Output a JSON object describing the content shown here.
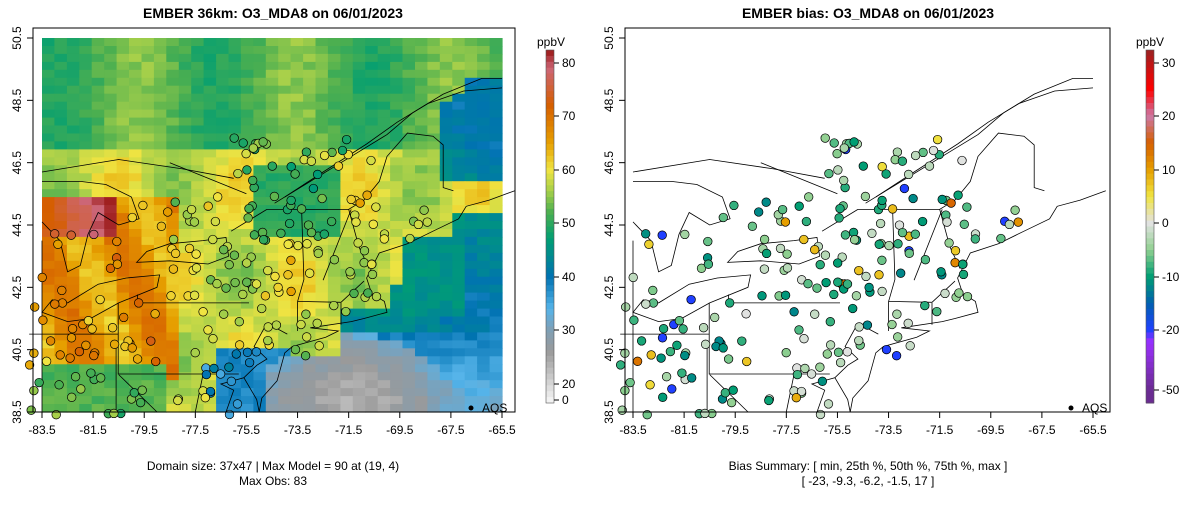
{
  "panels": [
    {
      "title": "EMBER 36km: O3_MDA8 on 06/01/2023",
      "footer_lines": [
        "Domain size: 37x47 | Max Model = 90 at (19, 4)",
        "Max Obs: 83"
      ],
      "legend_label": "AQS",
      "colorbar": {
        "unit": "ppbV",
        "ticks": [
          "80",
          "70",
          "60",
          "50",
          "40",
          "30",
          "20",
          "0"
        ]
      }
    },
    {
      "title": "EMBER bias: O3_MDA8 on 06/01/2023",
      "footer_lines": [
        "Bias Summary: [ min, 25th %, 50th %, 75th %, max ]",
        "[ -23,   -9.3,   -6.2,   -1.5,   17 ]"
      ],
      "legend_label": "AQS",
      "colorbar": {
        "unit": "ppbV",
        "ticks": [
          "30",
          "20",
          "10",
          "0",
          "-10",
          "-20",
          "-50"
        ]
      }
    }
  ],
  "axes": {
    "lon_ticks": [
      "-83.5",
      "-81.5",
      "-79.5",
      "-77.5",
      "-75.5",
      "-73.5",
      "-71.5",
      "-69.5",
      "-67.5",
      "-65.5"
    ],
    "lat_ticks": [
      "50.5",
      "48.5",
      "46.5",
      "44.5",
      "42.5",
      "40.5",
      "38.5"
    ]
  },
  "chart_data": {
    "type": "heatmap",
    "variable": "O3_MDA8",
    "date": "06/01/2023",
    "unit": "ppbV",
    "domain_size": "37x47",
    "max_model": 90,
    "max_model_cell": [
      19,
      4
    ],
    "max_obs": 83,
    "lon_range": [
      -84,
      -65
    ],
    "lat_range": [
      38.5,
      50.5
    ],
    "model_colorbar_range": [
      0,
      82
    ],
    "bias_colorbar_range": [
      -50,
      32
    ],
    "bias_summary": {
      "min": -23,
      "p25": -9.3,
      "p50": -6.2,
      "p75": -1.5,
      "max": 17
    },
    "colors": {
      "o3_stops": [
        [
          0,
          "#f2f2f2"
        ],
        [
          20,
          "#d6d6d6"
        ],
        [
          26,
          "#9a9a9a"
        ],
        [
          30,
          "#7f9fb5"
        ],
        [
          34,
          "#56b4e9"
        ],
        [
          40,
          "#0072b2"
        ],
        [
          47,
          "#009e73"
        ],
        [
          52,
          "#4caf50"
        ],
        [
          56,
          "#a5cf4a"
        ],
        [
          60,
          "#f0e442"
        ],
        [
          65,
          "#e69f00"
        ],
        [
          72,
          "#d55e00"
        ],
        [
          79,
          "#cc6677"
        ],
        [
          82,
          "#a02020"
        ]
      ],
      "bias_stops": [
        [
          -50,
          "#6a2c91"
        ],
        [
          -26,
          "#9b30ff"
        ],
        [
          -20,
          "#2040ff"
        ],
        [
          -15,
          "#0060b0"
        ],
        [
          -10,
          "#009e73"
        ],
        [
          -5,
          "#90d090"
        ],
        [
          0,
          "#e2e2e2"
        ],
        [
          5,
          "#f0e442"
        ],
        [
          10,
          "#e69f00"
        ],
        [
          15,
          "#d55e00"
        ],
        [
          20,
          "#cc79a7"
        ],
        [
          25,
          "#ff0000"
        ],
        [
          32,
          "#a02020"
        ]
      ]
    }
  }
}
